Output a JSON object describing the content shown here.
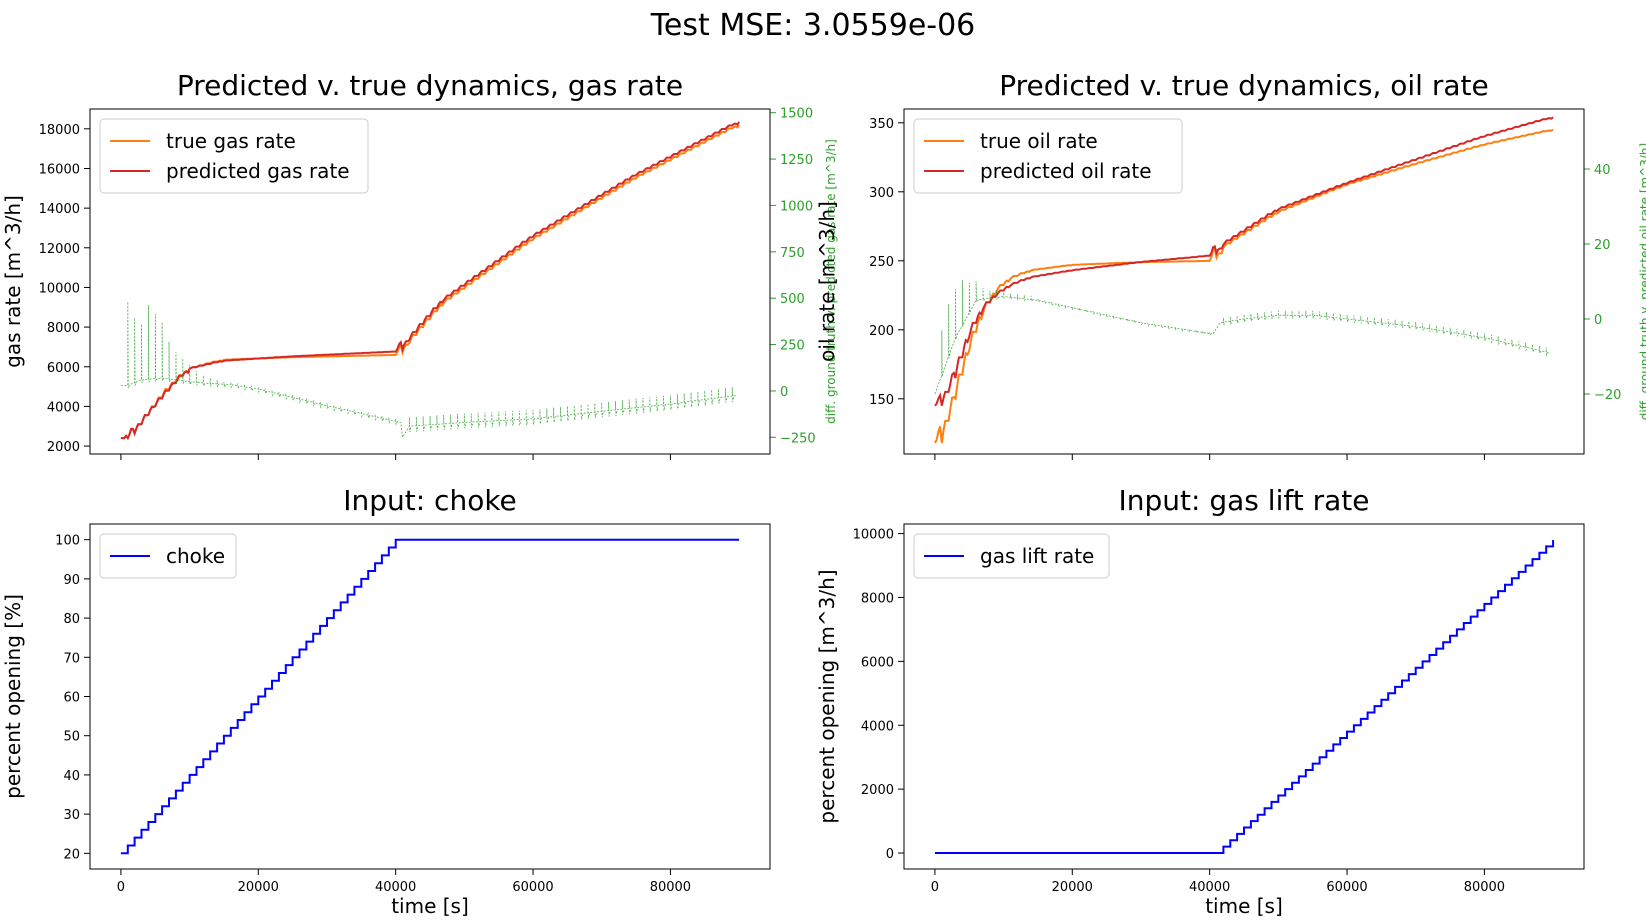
{
  "suptitle": "Test MSE: 3.0559e-06",
  "colors": {
    "true": "#ff7f0e",
    "pred": "#d62728",
    "diff": "#2ca02c",
    "input": "#0000ff"
  },
  "chart_data": [
    {
      "id": "gas",
      "type": "line",
      "title": "Predicted v. true dynamics, gas rate",
      "xlabel": "",
      "ylabel": "gas rate [m^3/h]",
      "y2label": "diff. ground truth v. predicted gas rate [m^3/h]",
      "xlim": [
        -4500,
        94500
      ],
      "ylim": [
        1600,
        19000
      ],
      "y2lim": [
        -340,
        1520
      ],
      "xticks": [
        0,
        20000,
        40000,
        60000,
        80000
      ],
      "yticks": [
        2000,
        4000,
        6000,
        8000,
        10000,
        12000,
        14000,
        16000,
        18000
      ],
      "y2ticks": [
        -250,
        0,
        250,
        500,
        750,
        1000,
        1250,
        1500
      ],
      "grid": false,
      "legend": "upper-left",
      "series": [
        {
          "name": "true gas rate",
          "role": "true",
          "x": [
            0,
            1500,
            4500,
            7500,
            10000,
            15000,
            25000,
            40800,
            41500,
            47000,
            60000,
            75000,
            90000
          ],
          "y": [
            2400,
            2400,
            3800,
            5100,
            5900,
            6350,
            6480,
            6600,
            7000,
            9200,
            12400,
            15500,
            18200
          ]
        },
        {
          "name": "predicted gas rate",
          "role": "pred",
          "x": [
            0,
            1500,
            4500,
            7500,
            10000,
            15000,
            25000,
            40800,
            41500,
            47000,
            60000,
            75000,
            90000
          ],
          "y": [
            2400,
            2400,
            3800,
            5000,
            5900,
            6300,
            6520,
            6780,
            7150,
            9350,
            12550,
            15650,
            18350
          ]
        },
        {
          "name": "",
          "role": "diff",
          "axis": "right",
          "x": [
            0,
            1000,
            3000,
            6000,
            10000,
            13000,
            16000,
            20000,
            30000,
            40800,
            41000,
            42000,
            50000,
            60000,
            70000,
            80000,
            89500
          ],
          "y": [
            30,
            30,
            60,
            70,
            50,
            40,
            35,
            10,
            -80,
            -170,
            -250,
            -190,
            -170,
            -150,
            -110,
            -70,
            -25
          ],
          "spikes_up": [
            450,
            350,
            300,
            400,
            350,
            300,
            200,
            150,
            120,
            90,
            60,
            40,
            30,
            20
          ],
          "spike_down": 80
        }
      ]
    },
    {
      "id": "oil",
      "type": "line",
      "title": "Predicted v. true dynamics, oil rate",
      "xlabel": "",
      "ylabel": "oil rate [m^3/h]",
      "y2label": "diff. ground truth v. predicted oil rate [m^3/h]",
      "xlim": [
        -4500,
        94500
      ],
      "ylim": [
        110,
        360
      ],
      "y2lim": [
        -36,
        56
      ],
      "xticks": [
        0,
        20000,
        40000,
        60000,
        80000
      ],
      "yticks": [
        150,
        200,
        250,
        300,
        350
      ],
      "y2ticks": [
        -20,
        0,
        20,
        40
      ],
      "grid": false,
      "legend": "upper-left",
      "series": [
        {
          "name": "true oil rate",
          "role": "true",
          "x": [
            0,
            1000,
            3000,
            5000,
            7000,
            9000,
            11000,
            14000,
            20000,
            30000,
            40800,
            41500,
            50000,
            60000,
            70000,
            80000,
            90000
          ],
          "y": [
            118,
            118,
            150,
            185,
            212,
            228,
            237,
            243,
            247,
            249,
            250,
            258,
            285,
            305,
            320,
            334,
            345
          ]
        },
        {
          "name": "predicted oil rate",
          "role": "pred",
          "x": [
            0,
            1000,
            3000,
            5000,
            7000,
            9000,
            11000,
            14000,
            20000,
            30000,
            40800,
            41500,
            50000,
            60000,
            70000,
            80000,
            90000
          ],
          "y": [
            145,
            145,
            165,
            195,
            215,
            225,
            232,
            238,
            243,
            249,
            254,
            260,
            287,
            306,
            323,
            340,
            354
          ]
        },
        {
          "name": "",
          "role": "diff",
          "axis": "right",
          "x": [
            0,
            1000,
            3000,
            6000,
            10000,
            15000,
            20000,
            30000,
            40500,
            41500,
            45000,
            50000,
            55000,
            60000,
            70000,
            80000,
            89500
          ],
          "y": [
            -20,
            -15,
            -5,
            5,
            6,
            5,
            3,
            -1,
            -4,
            -1,
            0,
            1,
            1,
            0,
            -2,
            -5,
            -9
          ],
          "spikes_up": [
            12,
            14,
            13,
            12,
            8,
            5,
            3,
            2,
            2,
            2,
            1,
            1,
            1,
            1
          ],
          "spike_down": 2
        }
      ]
    },
    {
      "id": "choke",
      "type": "line",
      "title": "Input: choke",
      "xlabel": "time [s]",
      "ylabel": "percent opening [%]",
      "xlim": [
        -4500,
        94500
      ],
      "ylim": [
        16,
        104
      ],
      "xticks": [
        0,
        20000,
        40000,
        60000,
        80000
      ],
      "yticks": [
        20,
        30,
        40,
        50,
        60,
        70,
        80,
        90,
        100
      ],
      "grid": false,
      "legend": "upper-left",
      "series": [
        {
          "name": "choke",
          "role": "input",
          "step": true,
          "x": [
            0,
            40000,
            90000
          ],
          "y": [
            20,
            100,
            100
          ]
        }
      ]
    },
    {
      "id": "gaslift",
      "type": "line",
      "title": "Input: gas lift rate",
      "xlabel": "time [s]",
      "ylabel": "percent opening [m^3/h]",
      "xlim": [
        -4500,
        94500
      ],
      "ylim": [
        -500,
        10300
      ],
      "xticks": [
        0,
        20000,
        40000,
        60000,
        80000
      ],
      "yticks": [
        0,
        2000,
        4000,
        6000,
        8000,
        10000
      ],
      "grid": false,
      "legend": "upper-left",
      "series": [
        {
          "name": "gas lift rate",
          "role": "input",
          "step": true,
          "x": [
            0,
            41000,
            90000
          ],
          "y": [
            0,
            0,
            9800
          ]
        }
      ]
    }
  ]
}
